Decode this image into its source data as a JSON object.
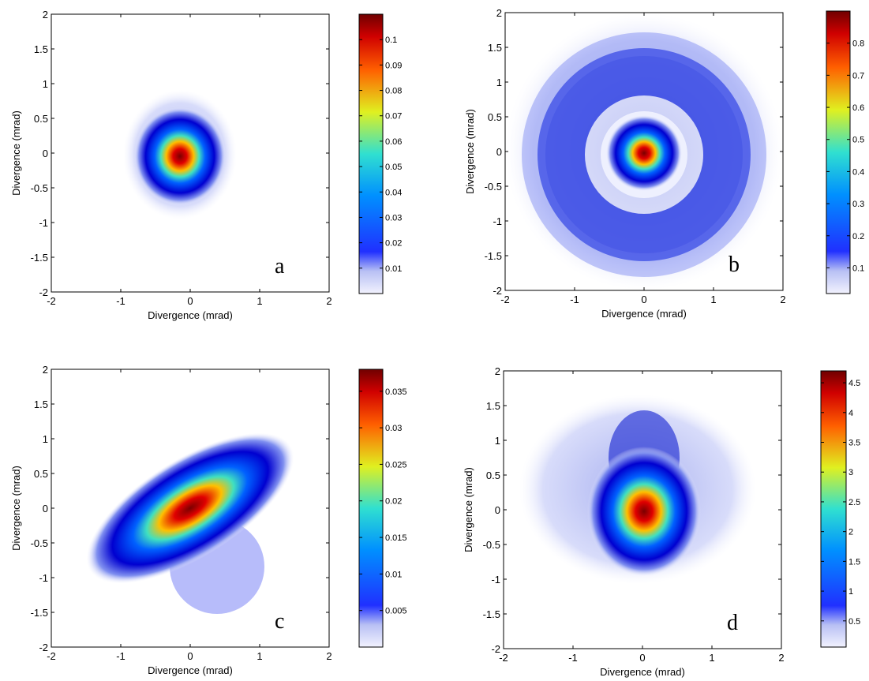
{
  "chart_data": [
    {
      "type": "heatmap",
      "label": "a",
      "xlabel": "Divergence (mrad)",
      "ylabel": "Divergence (mrad)",
      "xlim": [
        -2,
        2
      ],
      "ylim": [
        -2,
        2
      ],
      "xticks": [
        -2,
        -1,
        0,
        1,
        2
      ],
      "yticks": [
        -2,
        -1.5,
        -1,
        -0.5,
        0,
        0.5,
        1,
        1.5,
        2
      ],
      "clim": [
        0,
        0.11
      ],
      "cticks": [
        0.01,
        0.02,
        0.03,
        0.04,
        0.05,
        0.06,
        0.07,
        0.08,
        0.09,
        0.1
      ]
    },
    {
      "type": "heatmap",
      "label": "b",
      "xlabel": "Divergence (mrad)",
      "ylabel": "Divergence (mrad)",
      "xlim": [
        -2,
        2
      ],
      "ylim": [
        -2,
        2
      ],
      "xticks": [
        -2,
        -1,
        0,
        1,
        2
      ],
      "yticks": [
        -2,
        -1.5,
        -1,
        -0.5,
        0,
        0.5,
        1,
        1.5,
        2
      ],
      "clim": [
        0.02,
        0.9
      ],
      "cticks": [
        0.1,
        0.2,
        0.3,
        0.4,
        0.5,
        0.6,
        0.7,
        0.8
      ]
    },
    {
      "type": "heatmap",
      "label": "c",
      "xlabel": "Divergence (mrad)",
      "ylabel": "Divergence (mrad)",
      "xlim": [
        -2,
        2
      ],
      "ylim": [
        -2,
        2
      ],
      "xticks": [
        -2,
        -1,
        0,
        1,
        2
      ],
      "yticks": [
        -2,
        -1.5,
        -1,
        -0.5,
        0,
        0.5,
        1,
        1.5,
        2
      ],
      "clim": [
        0,
        0.038
      ],
      "cticks": [
        0.005,
        0.01,
        0.015,
        0.02,
        0.025,
        0.03,
        0.035
      ]
    },
    {
      "type": "heatmap",
      "label": "d",
      "xlabel": "Divergence (mrad)",
      "ylabel": "Divergence (mrad)",
      "xlim": [
        -2,
        2
      ],
      "ylim": [
        -2,
        2
      ],
      "xticks": [
        -2,
        -1,
        0,
        1,
        2
      ],
      "yticks": [
        -2,
        -1.5,
        -1,
        -0.5,
        0,
        0.5,
        1,
        1.5,
        2
      ],
      "clim": [
        0.06,
        4.7
      ],
      "cticks": [
        0.5,
        1,
        1.5,
        2,
        2.5,
        3,
        3.5,
        4,
        4.5
      ]
    }
  ]
}
